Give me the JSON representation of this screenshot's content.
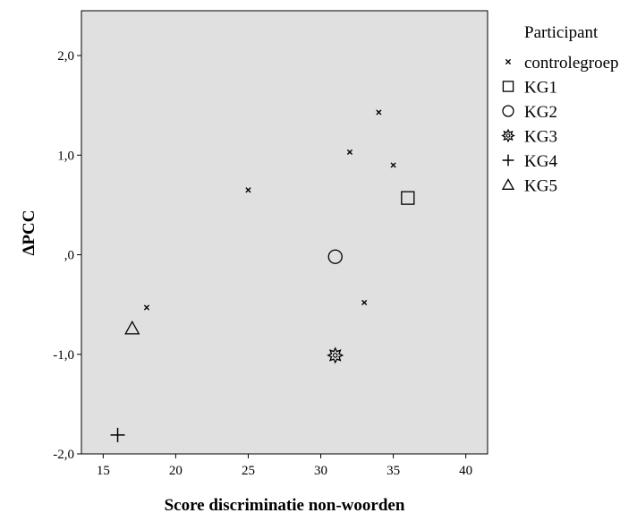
{
  "chart_data": {
    "type": "scatter",
    "xlabel": "Score discriminatie non-woorden",
    "ylabel": "ΔPCC",
    "xlim": [
      13.5,
      41.5
    ],
    "ylim": [
      -2.0,
      2.45
    ],
    "xticks": [
      15,
      20,
      25,
      30,
      35,
      40
    ],
    "xtick_labels": [
      "15",
      "20",
      "25",
      "30",
      "35",
      "40"
    ],
    "yticks": [
      2.0,
      1.0,
      0.0,
      -1.0,
      -2.0
    ],
    "ytick_labels": [
      "2,0",
      "1,0",
      ",0",
      "-1,0",
      "-2,0"
    ],
    "grid": false,
    "background": "#e0e0e0",
    "legend": {
      "title": "Participant",
      "placement": "right"
    },
    "series": [
      {
        "name": "controlegroep",
        "marker": "x",
        "points": [
          {
            "x": 18,
            "y": -0.53
          },
          {
            "x": 25,
            "y": 0.65
          },
          {
            "x": 32,
            "y": 1.03
          },
          {
            "x": 33,
            "y": -0.48
          },
          {
            "x": 34,
            "y": 1.43
          },
          {
            "x": 35,
            "y": 0.9
          }
        ]
      },
      {
        "name": "KG1",
        "marker": "square",
        "points": [
          {
            "x": 36,
            "y": 0.57
          }
        ]
      },
      {
        "name": "KG2",
        "marker": "circle",
        "points": [
          {
            "x": 31,
            "y": -0.02
          }
        ]
      },
      {
        "name": "KG3",
        "marker": "star",
        "points": [
          {
            "x": 31,
            "y": -1.01
          }
        ]
      },
      {
        "name": "KG4",
        "marker": "plus",
        "points": [
          {
            "x": 16,
            "y": -1.81
          }
        ]
      },
      {
        "name": "KG5",
        "marker": "triangle",
        "points": [
          {
            "x": 17,
            "y": -0.74
          }
        ]
      }
    ]
  }
}
